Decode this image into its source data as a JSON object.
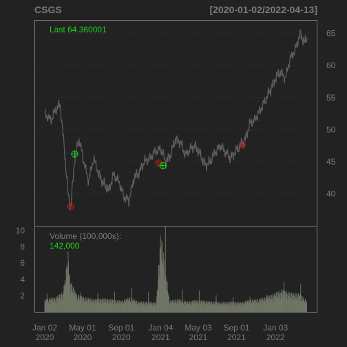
{
  "chart_data": {
    "type": "line",
    "title_left": "CSGS",
    "title_right": "[2020-01-02/2022-04-13]",
    "price_panel": {
      "legend_label": "Last",
      "last_value": "64.360001",
      "ylim": [
        35,
        67
      ],
      "y_ticks": [
        40,
        45,
        50,
        55,
        60,
        65
      ],
      "x_dates": [
        "2020-01-02",
        "2020-01-21",
        "2020-02-05",
        "2020-02-20",
        "2020-03-06",
        "2020-03-16",
        "2020-03-24",
        "2020-04-06",
        "2020-04-20",
        "2020-05-05",
        "2020-05-20",
        "2020-06-05",
        "2020-06-22",
        "2020-07-08",
        "2020-07-23",
        "2020-08-07",
        "2020-08-24",
        "2020-09-09",
        "2020-09-25",
        "2020-10-12",
        "2020-10-29",
        "2020-11-13",
        "2020-11-30",
        "2020-12-15",
        "2021-01-04",
        "2021-01-20",
        "2021-02-04",
        "2021-02-19",
        "2021-03-08",
        "2021-03-23",
        "2021-04-08",
        "2021-04-23",
        "2021-05-10",
        "2021-05-25",
        "2021-06-10",
        "2021-06-25",
        "2021-07-13",
        "2021-07-28",
        "2021-08-12",
        "2021-08-27",
        "2021-09-14",
        "2021-09-29",
        "2021-10-14",
        "2021-10-29",
        "2021-11-15",
        "2021-12-01",
        "2021-12-16",
        "2022-01-03",
        "2022-01-19",
        "2022-02-03",
        "2022-02-18",
        "2022-03-07",
        "2022-03-22",
        "2022-04-06",
        "2022-04-13"
      ],
      "close": [
        52.5,
        51.5,
        53.0,
        54.0,
        46.0,
        40.0,
        37.5,
        45.5,
        48.5,
        45.0,
        42.0,
        45.5,
        43.0,
        41.5,
        40.5,
        43.0,
        42.0,
        39.5,
        39.0,
        42.5,
        43.5,
        45.0,
        45.5,
        46.5,
        47.0,
        45.0,
        46.0,
        48.5,
        48.0,
        46.0,
        47.0,
        47.5,
        46.0,
        44.5,
        45.0,
        46.5,
        47.5,
        46.5,
        45.5,
        46.5,
        47.5,
        48.5,
        51.0,
        51.5,
        53.0,
        54.5,
        56.0,
        58.0,
        59.0,
        58.0,
        61.0,
        62.5,
        65.0,
        63.5,
        64.36
      ],
      "markers": [
        {
          "date": "2020-03-24",
          "value": 38.0,
          "type": "sell"
        },
        {
          "date": "2020-04-06",
          "value": 46.2,
          "type": "buy"
        },
        {
          "date": "2020-12-28",
          "value": 44.8,
          "type": "sell"
        },
        {
          "date": "2021-01-11",
          "value": 44.4,
          "type": "buy"
        },
        {
          "date": "2021-09-20",
          "value": 47.7,
          "type": "sell"
        }
      ]
    },
    "volume_panel": {
      "legend_label": "Volume (100,000s):",
      "last_value": "142,000",
      "ylim": [
        0,
        10.5
      ],
      "y_ticks": [
        2,
        4,
        6,
        8,
        10
      ],
      "volume_dates": [
        "2020-01-02",
        "2020-02-03",
        "2020-03-02",
        "2020-03-16",
        "2020-03-23",
        "2020-04-13",
        "2020-05-11",
        "2020-06-08",
        "2020-07-06",
        "2020-08-03",
        "2020-08-31",
        "2020-09-28",
        "2020-10-26",
        "2020-11-23",
        "2020-12-21",
        "2021-01-04",
        "2021-02-01",
        "2021-03-01",
        "2021-03-29",
        "2021-04-26",
        "2021-05-24",
        "2021-06-21",
        "2021-07-19",
        "2021-08-16",
        "2021-09-13",
        "2021-10-11",
        "2021-11-08",
        "2021-12-06",
        "2022-01-03",
        "2022-01-24",
        "2022-02-21",
        "2022-03-21",
        "2022-04-13"
      ],
      "volume": [
        1.6,
        1.8,
        2.6,
        7.5,
        4.0,
        2.2,
        1.8,
        1.6,
        1.7,
        1.6,
        1.4,
        1.8,
        1.3,
        1.3,
        1.2,
        10.2,
        1.4,
        1.6,
        1.3,
        1.5,
        1.4,
        1.3,
        1.2,
        1.3,
        1.2,
        1.5,
        1.6,
        1.9,
        2.4,
        2.8,
        2.4,
        2.3,
        1.4
      ]
    },
    "x_axis": {
      "tick_dates": [
        "2020-01-02",
        "2020-05-01",
        "2020-09-01",
        "2021-01-04",
        "2021-05-03",
        "2021-09-01",
        "2022-01-03"
      ],
      "labels_line1": [
        "Jan 02",
        "May 01",
        "Sep 01",
        "Jan 04",
        "May 03",
        "Sep 01",
        "Jan 03"
      ],
      "labels_line2": [
        "2020",
        "2020",
        "2020",
        "2021",
        "2021",
        "2021",
        "2022"
      ]
    },
    "colors": {
      "background": "#222222",
      "border": "#7a7a7a",
      "grid": "#444444",
      "price_line": "#606060",
      "volume_bars": "#6e7564",
      "buy": "#1ed31e",
      "sell": "#c01818",
      "legend_value": "#1ed31e",
      "axis_text": "#7a7a7a"
    }
  }
}
